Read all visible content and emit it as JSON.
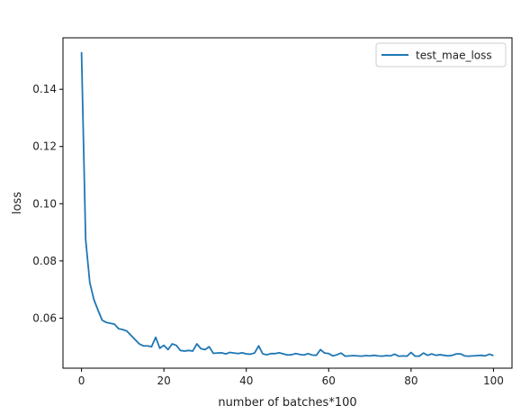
{
  "chart_data": {
    "type": "line",
    "title": "",
    "xlabel": "number of batches*100",
    "ylabel": "loss",
    "xlim": [
      -4.5,
      104.5
    ],
    "ylim": [
      0.0425,
      0.158
    ],
    "xticks": [
      0,
      20,
      40,
      60,
      80,
      100
    ],
    "yticks": [
      0.06,
      0.08,
      0.1,
      0.12,
      0.14
    ],
    "ytick_labels": [
      "0.06",
      "0.08",
      "0.10",
      "0.12",
      "0.14"
    ],
    "grid": false,
    "legend": {
      "placement": "top-right"
    },
    "series": [
      {
        "name": "test_mae_loss",
        "color": "#1f77b4",
        "x": [
          0,
          1,
          2,
          3,
          4,
          5,
          6,
          7,
          8,
          9,
          10,
          11,
          12,
          13,
          14,
          15,
          16,
          17,
          18,
          19,
          20,
          21,
          22,
          23,
          24,
          25,
          26,
          27,
          28,
          29,
          30,
          31,
          32,
          33,
          34,
          35,
          36,
          37,
          38,
          39,
          40,
          41,
          42,
          43,
          44,
          45,
          46,
          47,
          48,
          49,
          50,
          51,
          52,
          53,
          54,
          55,
          56,
          57,
          58,
          59,
          60,
          61,
          62,
          63,
          64,
          65,
          66,
          67,
          68,
          69,
          70,
          71,
          72,
          73,
          74,
          75,
          76,
          77,
          78,
          79,
          80,
          81,
          82,
          83,
          84,
          85,
          86,
          87,
          88,
          89,
          90,
          91,
          92,
          93,
          94,
          95,
          96,
          97,
          98,
          99,
          100
        ],
        "values": [
          0.153,
          0.0875,
          0.0725,
          0.0665,
          0.0628,
          0.0593,
          0.0585,
          0.0582,
          0.0579,
          0.0563,
          0.056,
          0.0555,
          0.054,
          0.0525,
          0.051,
          0.0503,
          0.0503,
          0.05,
          0.0533,
          0.0495,
          0.0505,
          0.049,
          0.051,
          0.0505,
          0.0487,
          0.0485,
          0.0487,
          0.0485,
          0.051,
          0.0493,
          0.049,
          0.05,
          0.0477,
          0.0478,
          0.0479,
          0.0475,
          0.048,
          0.0478,
          0.0476,
          0.0479,
          0.0475,
          0.0474,
          0.0478,
          0.0503,
          0.0475,
          0.0472,
          0.0476,
          0.0476,
          0.0479,
          0.0475,
          0.0471,
          0.0472,
          0.0476,
          0.0473,
          0.0471,
          0.0476,
          0.0471,
          0.047,
          0.049,
          0.0478,
          0.0476,
          0.0468,
          0.0472,
          0.0478,
          0.0467,
          0.0468,
          0.0469,
          0.0468,
          0.0467,
          0.0469,
          0.0468,
          0.047,
          0.0468,
          0.0467,
          0.0469,
          0.0468,
          0.0474,
          0.0467,
          0.0468,
          0.0467,
          0.048,
          0.0467,
          0.0467,
          0.0478,
          0.047,
          0.0475,
          0.047,
          0.0472,
          0.047,
          0.0468,
          0.047,
          0.0475,
          0.0475,
          0.0468,
          0.0467,
          0.0468,
          0.0469,
          0.047,
          0.0468,
          0.0474,
          0.0469
        ]
      }
    ]
  }
}
